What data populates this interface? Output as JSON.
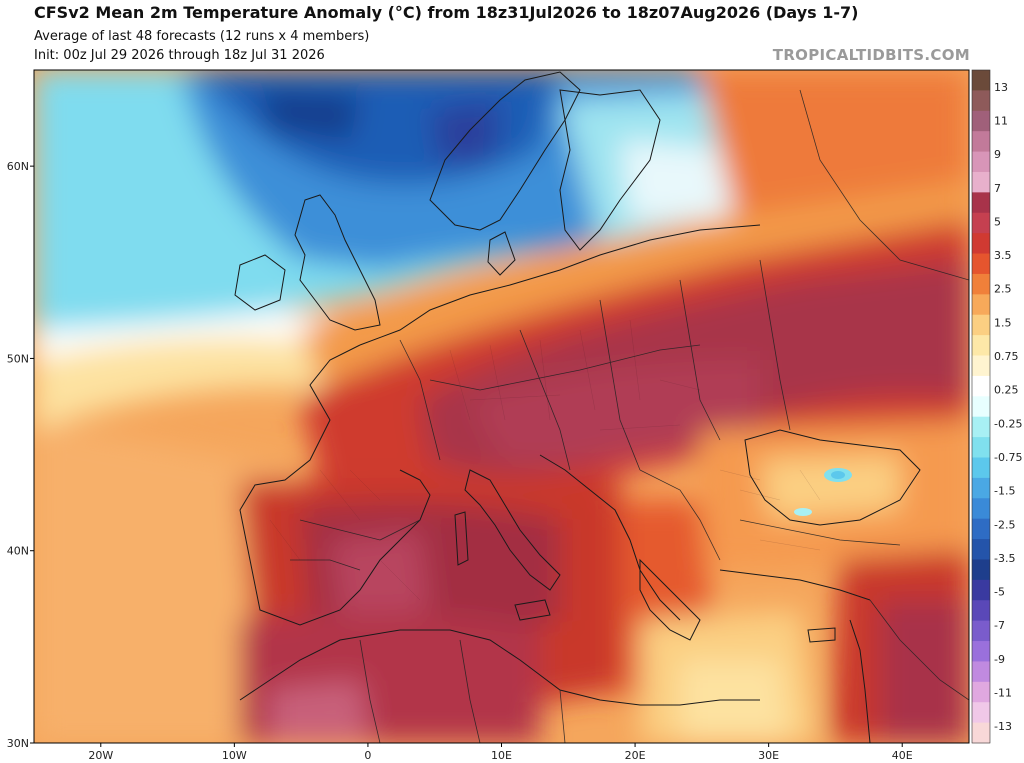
{
  "header": {
    "title": "CFSv2 Mean 2m Temperature Anomaly (°C) from 18z31Jul2026 to 18z07Aug2026 (Days 1-7)",
    "subtitle1": "Average of last 48 forecasts (12 runs x 4 members)",
    "subtitle2": "Init: 00z Jul 29 2026 through 18z Jul 31 2026",
    "brand": "TROPICALTIDBITS.COM"
  },
  "map": {
    "region": "Europe / Mediterranean",
    "lon_range": [
      -25,
      45
    ],
    "lat_range": [
      30,
      65
    ],
    "lon_ticks": [
      "20W",
      "10W",
      "0",
      "10E",
      "20E",
      "30E",
      "40E"
    ],
    "lat_ticks": [
      "60N",
      "50N",
      "40N",
      "30N"
    ]
  },
  "colorbar": {
    "labels": [
      "13",
      "11",
      "9",
      "7",
      "5",
      "3.5",
      "2.5",
      "1.5",
      "0.75",
      "0.25",
      "-0.25",
      "-0.75",
      "-1.5",
      "-2.5",
      "-3.5",
      "-5",
      "-7",
      "-9",
      "-11",
      "-13"
    ],
    "colors": [
      "#6b4a3a",
      "#8e5a5a",
      "#a0607a",
      "#c27a9a",
      "#d895b8",
      "#e8b0cc",
      "#a8334a",
      "#c54050",
      "#d03a32",
      "#e5552e",
      "#f0803a",
      "#f7a95a",
      "#fbcf82",
      "#fde8a8",
      "#fff4d0",
      "#ffffff",
      "#e8ffff",
      "#a8f0f4",
      "#80e0ee",
      "#5cc8ec",
      "#4aa8e4",
      "#3a8ad8",
      "#2e6cc4",
      "#2454aa",
      "#1e3e8c",
      "#3a3aa0",
      "#5a48b8",
      "#7a5ccc",
      "#9a70dc",
      "#c08ae0",
      "#e0a8e0",
      "#f0c8e8",
      "#f8d8d8"
    ]
  }
}
